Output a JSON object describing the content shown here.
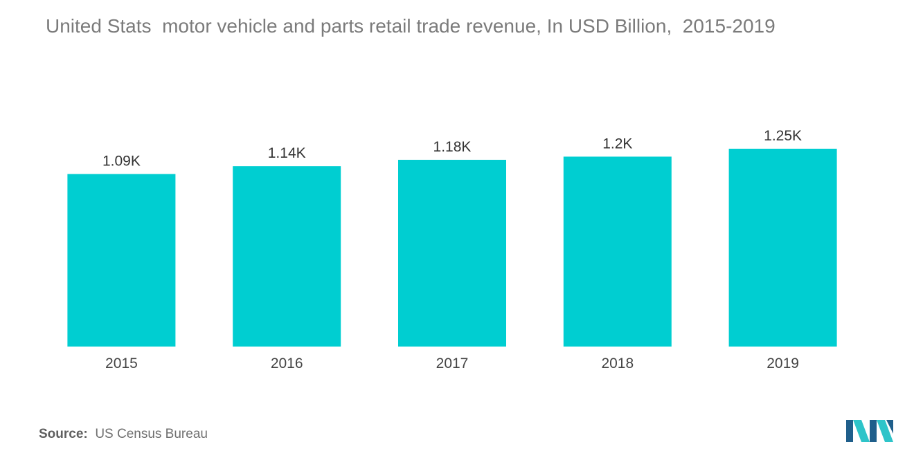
{
  "title": "United Stats  motor vehicle and parts retail trade revenue, In USD Billion,  2015-2019",
  "source": {
    "key": "Source:",
    "value": "US Census Bureau"
  },
  "colors": {
    "bar": "#00ced1",
    "logo_dark": "#1f5f8b",
    "logo_light": "#2ec4c9"
  },
  "logo_icon": "mordor-intelligence-logo",
  "chart_data": {
    "type": "bar",
    "title": "United Stats  motor vehicle and parts retail trade revenue, In USD Billion,  2015-2019",
    "xlabel": "",
    "ylabel": "",
    "categories": [
      "2015",
      "2016",
      "2017",
      "2018",
      "2019"
    ],
    "values": [
      1090,
      1140,
      1180,
      1200,
      1250
    ],
    "data_labels": [
      "1.09K",
      "1.14K",
      "1.18K",
      "1.2K",
      "1.25K"
    ],
    "ylim": [
      0,
      1250
    ],
    "grid": false,
    "legend": "none",
    "y_axis_visible": false
  }
}
